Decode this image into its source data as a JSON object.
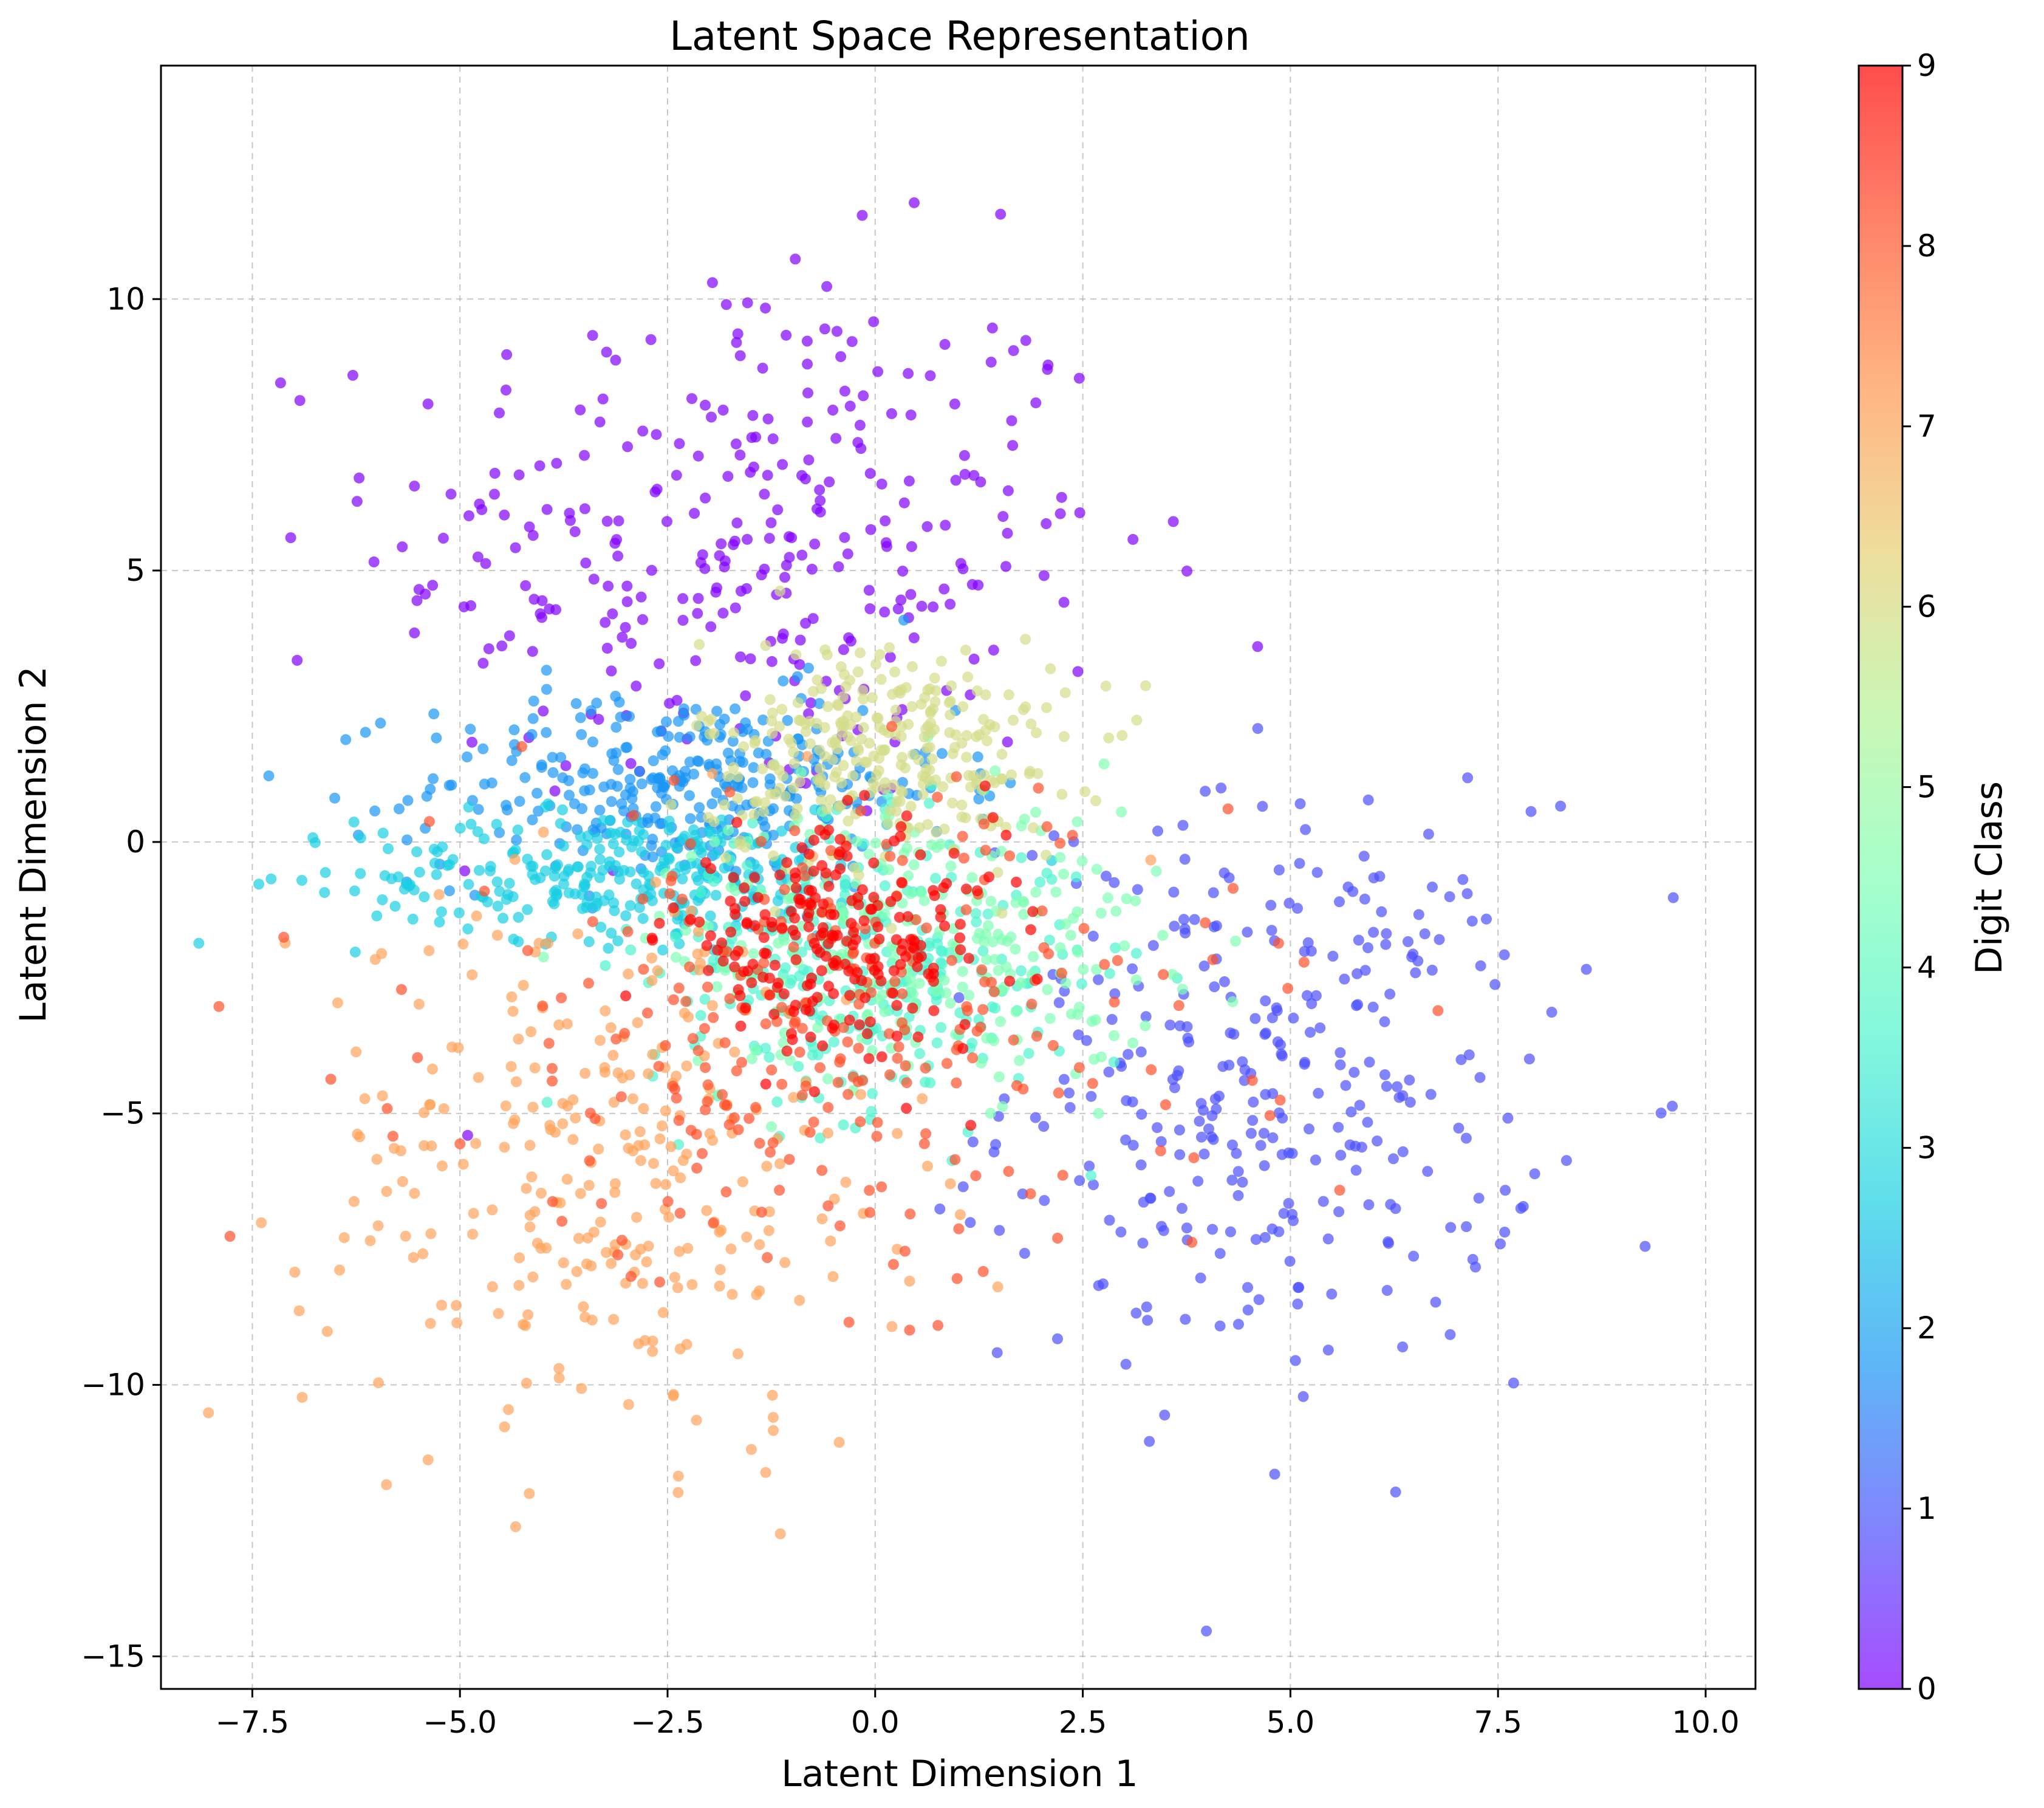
{
  "chart_data": {
    "type": "scatter",
    "title": "Latent Space Representation",
    "xlabel": "Latent Dimension 1",
    "ylabel": "Latent Dimension 2",
    "xlim": [
      -8.6,
      10.6
    ],
    "ylim": [
      -15.6,
      14.3
    ],
    "xticks": [
      -7.5,
      -5.0,
      -2.5,
      0.0,
      2.5,
      5.0,
      7.5,
      10.0
    ],
    "xtick_labels": [
      "−7.5",
      "−5.0",
      "−2.5",
      "0.0",
      "2.5",
      "5.0",
      "7.5",
      "10.0"
    ],
    "yticks": [
      -15,
      -10,
      -5,
      0,
      5,
      10
    ],
    "ytick_labels": [
      "−15",
      "−10",
      "−5",
      "0",
      "5",
      "10"
    ],
    "grid": true,
    "marker_alpha": 0.7,
    "colorbar": {
      "label": "Digit Class",
      "min": 0,
      "max": 9,
      "ticks": [
        0,
        1,
        2,
        3,
        4,
        5,
        6,
        7,
        8,
        9
      ],
      "tick_labels": [
        "0",
        "1",
        "2",
        "3",
        "4",
        "5",
        "6",
        "7",
        "8",
        "9"
      ],
      "colormap": "rainbow",
      "stops": [
        "#8000ff",
        "#4c50fc",
        "#1996f3",
        "#1acfe3",
        "#4df3ce",
        "#80ffb4",
        "#b2f396",
        "#e6cf73",
        "#ff964f",
        "#ff5029",
        "#ff0000"
      ]
    },
    "clusters": [
      {
        "class": 0,
        "color": "#8000ff",
        "center": [
          -1.5,
          5.5
        ],
        "spread": [
          2.2,
          2.6
        ],
        "count": 320
      },
      {
        "class": 1,
        "color": "#4c50fc",
        "center": [
          4.8,
          -4.5
        ],
        "spread": [
          1.6,
          2.6
        ],
        "count": 330
      },
      {
        "class": 2,
        "color": "#1996f3",
        "center": [
          -2.3,
          1.0
        ],
        "spread": [
          1.6,
          0.9
        ],
        "count": 330
      },
      {
        "class": 3,
        "color": "#1acfe3",
        "center": [
          -3.0,
          -0.6
        ],
        "spread": [
          1.6,
          0.6
        ],
        "count": 290
      },
      {
        "class": 4,
        "color": "#4df3ce",
        "center": [
          -0.1,
          -2.4
        ],
        "spread": [
          1.3,
          1.3
        ],
        "count": 280
      },
      {
        "class": 5,
        "color": "#80ffb4",
        "center": [
          0.5,
          -1.8
        ],
        "spread": [
          1.5,
          1.3
        ],
        "count": 260
      },
      {
        "class": 6,
        "color": "#d4dd8a",
        "center": [
          0.1,
          1.6
        ],
        "spread": [
          1.1,
          1.1
        ],
        "count": 300
      },
      {
        "class": 7,
        "color": "#ffa35a",
        "center": [
          -3.2,
          -6.0
        ],
        "spread": [
          1.8,
          2.6
        ],
        "count": 300
      },
      {
        "class": 8,
        "color": "#ff5029",
        "center": [
          -0.5,
          -3.5
        ],
        "spread": [
          2.4,
          2.2
        ],
        "count": 280
      },
      {
        "class": 9,
        "color": "#ff0000",
        "center": [
          -0.5,
          -1.8
        ],
        "spread": [
          1.0,
          1.0
        ],
        "count": 230
      }
    ]
  }
}
